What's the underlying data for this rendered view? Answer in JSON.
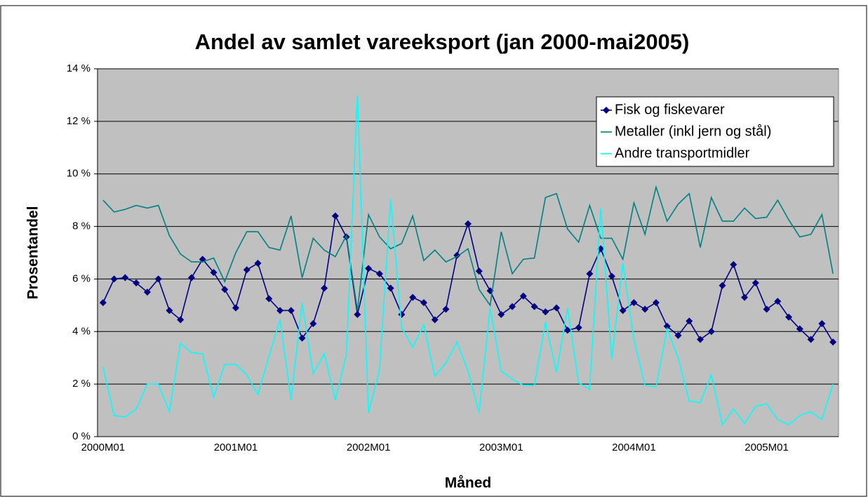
{
  "chart_data": {
    "type": "line",
    "title": "Andel av samlet vareeksport (jan 2000-mai2005)",
    "y_label": "Prosentandel",
    "x_label": "Måned",
    "categories": [
      "2000M01",
      null,
      null,
      null,
      null,
      null,
      null,
      null,
      null,
      null,
      null,
      null,
      "2001M01",
      null,
      null,
      null,
      null,
      null,
      null,
      null,
      null,
      null,
      null,
      null,
      "2002M01",
      null,
      null,
      null,
      null,
      null,
      null,
      null,
      null,
      null,
      null,
      null,
      "2003M01",
      null,
      null,
      null,
      null,
      null,
      null,
      null,
      null,
      null,
      null,
      null,
      "2004M01",
      null,
      null,
      null,
      null,
      null,
      null,
      null,
      null,
      null,
      null,
      null,
      "2005M01",
      null,
      null,
      null,
      null,
      null,
      null
    ],
    "ylim": [
      0,
      14
    ],
    "yticks": [
      {
        "value": 0,
        "label": "0 %"
      },
      {
        "value": 2,
        "label": "2 %"
      },
      {
        "value": 4,
        "label": "4 %"
      },
      {
        "value": 6,
        "label": "6 %"
      },
      {
        "value": 8,
        "label": "8 %"
      },
      {
        "value": 10,
        "label": "10 %"
      },
      {
        "value": 12,
        "label": "12 %"
      },
      {
        "value": 14,
        "label": "14 %"
      }
    ],
    "grid": true,
    "legend": "top-right",
    "series": [
      {
        "name": "Fisk og fiskevarer",
        "color": "#000080",
        "marker": "diamond",
        "values": [
          5.1,
          6.0,
          6.05,
          5.85,
          5.5,
          6.0,
          4.8,
          4.45,
          6.05,
          6.75,
          6.25,
          5.6,
          4.9,
          6.35,
          6.6,
          5.25,
          4.8,
          4.8,
          3.75,
          4.3,
          5.65,
          8.4,
          7.6,
          4.65,
          6.4,
          6.2,
          5.65,
          4.65,
          5.3,
          5.1,
          4.45,
          4.85,
          6.9,
          8.1,
          6.3,
          5.55,
          4.65,
          4.95,
          5.35,
          4.95,
          4.75,
          4.9,
          4.05,
          4.15,
          6.2,
          7.15,
          6.1,
          4.8,
          5.1,
          4.85,
          5.1,
          4.2,
          3.85,
          4.4,
          3.7,
          4.0,
          5.75,
          6.55,
          5.3,
          5.85,
          4.85,
          5.15,
          4.55,
          4.1,
          3.7,
          4.3,
          3.6
        ]
      },
      {
        "name": "Metaller (inkl jern og stål)",
        "color": "#008080",
        "values": [
          9.0,
          8.55,
          8.65,
          8.8,
          8.7,
          8.8,
          7.65,
          6.95,
          6.65,
          6.65,
          6.8,
          5.9,
          7.0,
          7.8,
          7.8,
          7.2,
          7.1,
          8.4,
          6.05,
          7.55,
          7.1,
          6.85,
          7.65,
          4.8,
          8.45,
          7.6,
          7.15,
          7.35,
          8.4,
          6.7,
          7.1,
          6.65,
          6.85,
          7.15,
          5.6,
          5.0,
          7.8,
          6.2,
          6.75,
          6.8,
          9.1,
          9.25,
          7.9,
          7.4,
          8.8,
          7.55,
          7.55,
          6.75,
          8.9,
          7.7,
          9.5,
          8.2,
          8.85,
          9.25,
          7.2,
          9.1,
          8.2,
          8.2,
          8.7,
          8.3,
          8.35,
          9.0,
          8.25,
          7.6,
          7.7,
          8.45,
          6.2
        ]
      },
      {
        "name": "Andre transportmidler",
        "color": "#00ffff",
        "values": [
          2.65,
          0.8,
          0.75,
          1.05,
          2.0,
          2.0,
          0.95,
          3.55,
          3.2,
          3.15,
          1.5,
          2.75,
          2.75,
          2.35,
          1.6,
          3.05,
          4.45,
          1.4,
          5.1,
          2.4,
          3.15,
          1.4,
          3.1,
          13.0,
          0.9,
          2.55,
          9.05,
          4.15,
          3.4,
          4.25,
          2.3,
          2.8,
          3.6,
          2.5,
          0.9,
          4.9,
          2.5,
          2.2,
          1.95,
          1.95,
          4.35,
          2.45,
          4.9,
          2.05,
          1.8,
          8.7,
          2.95,
          6.6,
          3.7,
          1.95,
          1.9,
          4.1,
          3.0,
          1.35,
          1.3,
          2.35,
          0.45,
          1.05,
          0.5,
          1.15,
          1.25,
          0.65,
          0.45,
          0.8,
          0.95,
          0.65,
          2.0
        ]
      }
    ]
  }
}
